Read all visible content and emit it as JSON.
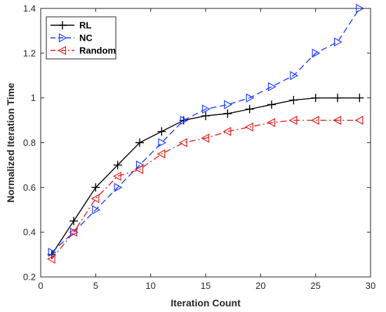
{
  "chart_data": {
    "type": "line",
    "title": "",
    "xlabel": "Iteration Count",
    "ylabel": "Normalized Iteration Time",
    "xlim": [
      0,
      30
    ],
    "ylim": [
      0.2,
      1.4
    ],
    "xticks": [
      0,
      5,
      10,
      15,
      20,
      25,
      30
    ],
    "yticks": [
      0.2,
      0.4,
      0.6,
      0.8,
      1.0,
      1.2,
      1.4
    ],
    "xtick_labels": [
      "0",
      "5",
      "10",
      "15",
      "20",
      "25",
      "30"
    ],
    "ytick_labels": [
      "0.2",
      "0.4",
      "0.6",
      "0.8",
      "1",
      "1.2",
      "1.4"
    ],
    "grid": false,
    "legend_position": "top-left",
    "x": [
      1,
      3,
      5,
      7,
      9,
      11,
      13,
      15,
      17,
      19,
      21,
      23,
      25,
      27,
      29
    ],
    "series": [
      {
        "name": "RL",
        "color": "#000000",
        "line_style": "solid",
        "marker": "plus",
        "values": [
          0.3,
          0.45,
          0.6,
          0.7,
          0.8,
          0.85,
          0.9,
          0.92,
          0.93,
          0.95,
          0.97,
          0.99,
          1.0,
          1.0,
          1.0
        ]
      },
      {
        "name": "NC",
        "color": "#1f3fff",
        "line_style": "dashed",
        "marker": "triangle-right",
        "values": [
          0.31,
          0.4,
          0.5,
          0.6,
          0.7,
          0.8,
          0.9,
          0.95,
          0.97,
          1.0,
          1.05,
          1.1,
          1.2,
          1.25,
          1.4
        ]
      },
      {
        "name": "Random",
        "color": "#e02020",
        "line_style": "dashdot",
        "marker": "triangle-left",
        "values": [
          0.28,
          0.4,
          0.55,
          0.65,
          0.68,
          0.75,
          0.8,
          0.82,
          0.85,
          0.87,
          0.89,
          0.9,
          0.9,
          0.9,
          0.9
        ]
      }
    ]
  }
}
